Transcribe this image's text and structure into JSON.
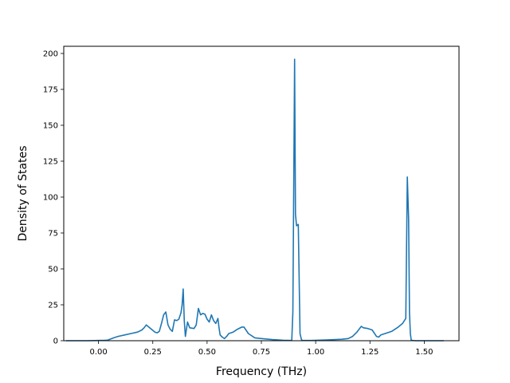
{
  "chart_data": {
    "type": "line",
    "title": "",
    "xlabel": "Frequency (THz)",
    "ylabel": "Density of States",
    "xlim": [
      -0.16,
      1.66
    ],
    "ylim": [
      0,
      205
    ],
    "xticks": [
      0.0,
      0.25,
      0.5,
      0.75,
      1.0,
      1.25,
      1.5
    ],
    "xtick_labels": [
      "0.00",
      "0.25",
      "0.50",
      "0.75",
      "1.00",
      "1.25",
      "1.50"
    ],
    "yticks": [
      0,
      25,
      50,
      75,
      100,
      125,
      150,
      175,
      200
    ],
    "ytick_labels": [
      "0",
      "25",
      "50",
      "75",
      "100",
      "125",
      "150",
      "175",
      "200"
    ],
    "grid": false,
    "series": [
      {
        "color": "#1f77b4",
        "x": [
          -0.15,
          -0.05,
          0.04,
          0.07,
          0.09,
          0.12,
          0.15,
          0.18,
          0.2,
          0.21,
          0.22,
          0.24,
          0.26,
          0.27,
          0.28,
          0.29,
          0.3,
          0.31,
          0.32,
          0.33,
          0.34,
          0.35,
          0.36,
          0.37,
          0.38,
          0.385,
          0.39,
          0.395,
          0.4,
          0.41,
          0.42,
          0.44,
          0.45,
          0.46,
          0.47,
          0.48,
          0.49,
          0.5,
          0.51,
          0.52,
          0.53,
          0.54,
          0.55,
          0.555,
          0.56,
          0.57,
          0.58,
          0.59,
          0.6,
          0.61,
          0.62,
          0.64,
          0.66,
          0.67,
          0.69,
          0.72,
          0.75,
          0.8,
          0.85,
          0.89,
          0.895,
          0.903,
          0.907,
          0.912,
          0.92,
          0.928,
          0.935,
          0.94,
          0.95,
          0.98,
          1.05,
          1.12,
          1.15,
          1.17,
          1.19,
          1.21,
          1.22,
          1.24,
          1.26,
          1.28,
          1.29,
          1.3,
          1.32,
          1.35,
          1.38,
          1.4,
          1.415,
          1.422,
          1.428,
          1.432,
          1.436,
          1.44,
          1.445,
          1.46,
          1.52,
          1.59
        ],
        "y": [
          0,
          0,
          0.3,
          2,
          3,
          4,
          5,
          6,
          7.5,
          9,
          11,
          8.5,
          6,
          5.5,
          6.5,
          12,
          18,
          20,
          11,
          8,
          6.5,
          14.5,
          14,
          15,
          19.5,
          25,
          36,
          14,
          3,
          13,
          9,
          8.5,
          11,
          22.5,
          18,
          19,
          18.5,
          15,
          13,
          18,
          14,
          12,
          15.5,
          9,
          4,
          2.5,
          1.5,
          3,
          5,
          5.5,
          6,
          8,
          9.5,
          9.5,
          5,
          2,
          1.5,
          0.8,
          0.3,
          0.2,
          20,
          196,
          88,
          80,
          81,
          5,
          0.5,
          0.2,
          0.2,
          0.2,
          0.5,
          1,
          1.5,
          3,
          6,
          10,
          9,
          8.5,
          7.5,
          3,
          2.5,
          4,
          5,
          6.5,
          9.5,
          12,
          15.5,
          114,
          85,
          20,
          5,
          0.5,
          0.2,
          0,
          0,
          0
        ]
      }
    ]
  }
}
